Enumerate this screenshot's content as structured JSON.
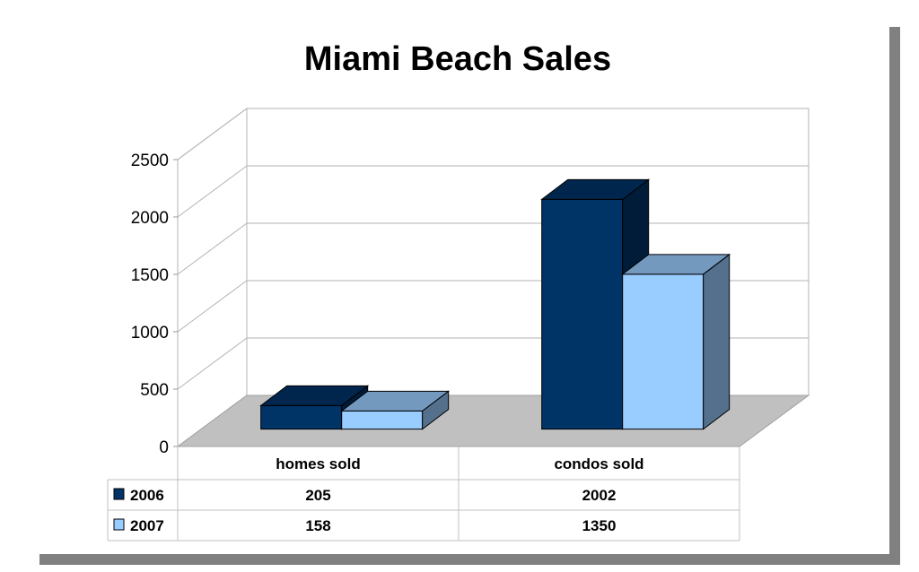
{
  "chart_data": {
    "type": "bar",
    "title": "Miami Beach Sales",
    "categories": [
      "homes sold",
      "condos sold"
    ],
    "series": [
      {
        "name": "2006",
        "values": [
          205,
          2002
        ],
        "color": "#003366"
      },
      {
        "name": "2007",
        "values": [
          158,
          1350
        ],
        "color": "#99ccff"
      }
    ],
    "ylim": [
      0,
      2500
    ],
    "yticks": [
      "0",
      "500",
      "1000",
      "1500",
      "2000",
      "2500"
    ],
    "grid": true,
    "legend": "data-table",
    "three_d": true,
    "data_table": {
      "rows": [
        {
          "label": "2006",
          "values": [
            "205",
            "2002"
          ]
        },
        {
          "label": "2007",
          "values": [
            "158",
            "1350"
          ]
        }
      ]
    }
  }
}
